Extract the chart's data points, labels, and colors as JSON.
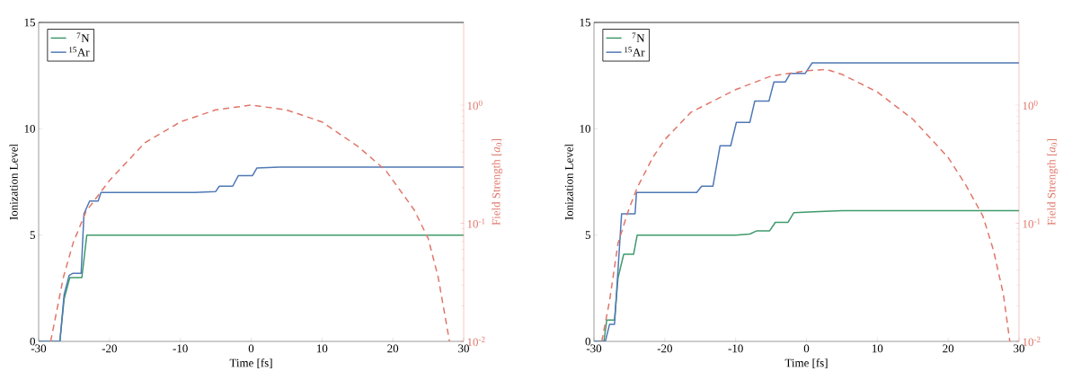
{
  "chart_data": [
    {
      "type": "line",
      "xlabel": "Time [fs]",
      "ylabel": "Ionization Level",
      "y2label": "Field Strength [*a*$_{0}$]",
      "xlim": [
        -30,
        30
      ],
      "xticks": [
        -30,
        -20,
        -10,
        0,
        10,
        20,
        30
      ],
      "ylim": [
        0,
        15
      ],
      "yticks": [
        0,
        5,
        10,
        15
      ],
      "y2lim": [
        0.01,
        5
      ],
      "y2ticks": [
        {
          "value": 0.01,
          "label": "10$^{-2}$"
        },
        {
          "value": 0.1,
          "label": "10$^{-1}$"
        },
        {
          "value": 1,
          "label": "10$^{0}$"
        }
      ],
      "log": "y2",
      "legend": "top left",
      "series": [
        {
          "name": "$^{7}$N",
          "color": "#3f9a6c",
          "x": [
            -30,
            -27,
            -26.4,
            -25.6,
            -23.9,
            -23.2,
            30
          ],
          "values": [
            0,
            0,
            2,
            3,
            3,
            5,
            5
          ]
        },
        {
          "name": "$^{15}$Ar",
          "color": "#4f78b5",
          "x": [
            -30,
            -27,
            -26.4,
            -25.7,
            -25.2,
            -24,
            -23.6,
            -23.2,
            -22.8,
            -21.6,
            -21.2,
            -8,
            -5,
            -4.5,
            -2.6,
            -1.8,
            0.2,
            0.8,
            4,
            30
          ],
          "values": [
            0,
            0,
            2.2,
            3.1,
            3.2,
            3.2,
            6,
            6.3,
            6.6,
            6.6,
            7,
            7,
            7.05,
            7.3,
            7.3,
            7.8,
            7.8,
            8.15,
            8.2,
            8.2
          ]
        },
        {
          "color": "#e0766a",
          "axis": "y2",
          "line_style": "dashed",
          "x": [
            -28.3,
            -26.5,
            -25.1,
            -23.3,
            -20,
            -15,
            -10,
            -5,
            0,
            5,
            10,
            15,
            19,
            23,
            25,
            26.4,
            28
          ],
          "values": [
            0.01,
            0.035,
            0.069,
            0.126,
            0.23,
            0.48,
            0.72,
            0.91,
            1.0,
            0.91,
            0.72,
            0.45,
            0.28,
            0.13,
            0.074,
            0.035,
            0.01
          ]
        }
      ]
    },
    {
      "type": "line",
      "xlabel": "Time [fs]",
      "ylabel": "Ionization Level",
      "y2label": "Field Strength [*a*$_{0}$]",
      "xlim": [
        -30,
        30
      ],
      "xticks": [
        -30,
        -20,
        -10,
        0,
        10,
        20,
        30
      ],
      "ylim": [
        0,
        15
      ],
      "yticks": [
        0,
        5,
        10,
        15
      ],
      "y2lim": [
        0.01,
        5
      ],
      "y2ticks": [
        {
          "value": 0.01,
          "label": "10$^{-2}$"
        },
        {
          "value": 0.1,
          "label": "10$^{-1}$"
        },
        {
          "value": 1,
          "label": "10$^{0}$"
        }
      ],
      "log": "y2",
      "legend": "top left",
      "series": [
        {
          "name": "$^{7}$N",
          "color": "#3f9a6c",
          "x": [
            -30,
            -28.6,
            -28.2,
            -27.1,
            -26.6,
            -25.8,
            -24.4,
            -23.9,
            -10,
            -8,
            -7,
            -5.2,
            -4.4,
            -2.6,
            -1.8,
            1,
            5,
            30
          ],
          "values": [
            0,
            0,
            1,
            1,
            3,
            4.1,
            4.1,
            5,
            5,
            5.05,
            5.2,
            5.2,
            5.6,
            5.6,
            6.05,
            6.1,
            6.15,
            6.15
          ]
        },
        {
          "name": "$^{15}$Ar",
          "color": "#4f78b5",
          "x": [
            -30,
            -28.4,
            -27.8,
            -27.1,
            -26.1,
            -24.2,
            -24,
            -15.5,
            -14.8,
            -13.2,
            -12.2,
            -10.7,
            -9.9,
            -8,
            -7.3,
            -5.3,
            -4.6,
            -3,
            -2.3,
            -0.2,
            0.8,
            30
          ],
          "values": [
            0,
            0,
            0.8,
            0.8,
            6,
            6,
            7,
            7,
            7.3,
            7.3,
            9.2,
            9.2,
            10.3,
            10.3,
            11.3,
            11.3,
            12.2,
            12.2,
            12.6,
            12.6,
            13.1,
            13.1
          ]
        },
        {
          "color": "#e0766a",
          "axis": "y2",
          "line_style": "dashed",
          "x": [
            -28.9,
            -27.8,
            -26.6,
            -25.1,
            -23.9,
            -21.7,
            -20,
            -16.3,
            -10,
            -5,
            0,
            2.8,
            5,
            10,
            15,
            20,
            22.5,
            24.9,
            26.4,
            27.8,
            28.7
          ],
          "values": [
            0.01,
            0.022,
            0.068,
            0.13,
            0.2,
            0.36,
            0.51,
            0.87,
            1.35,
            1.76,
            1.95,
            2.0,
            1.82,
            1.29,
            0.76,
            0.36,
            0.21,
            0.115,
            0.059,
            0.025,
            0.01
          ]
        }
      ]
    }
  ]
}
